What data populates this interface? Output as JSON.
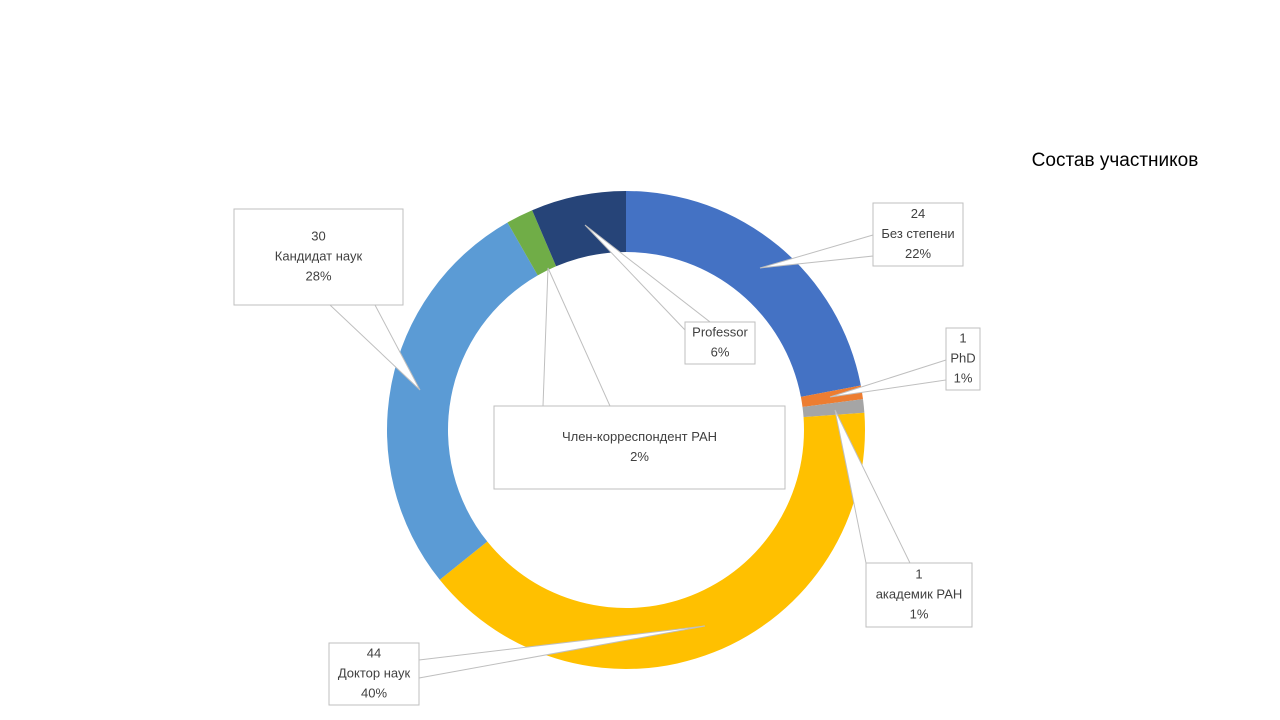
{
  "chart_data": {
    "type": "donut",
    "title": "Состав участников",
    "categories": [
      "Без степени",
      "PhD",
      "академик РАН",
      "Доктор  наук",
      "Кандидат наук",
      "Член-корреспондент РАН",
      "Professor"
    ],
    "values": [
      24,
      1,
      1,
      44,
      30,
      2,
      7
    ],
    "value_labels": [
      "24",
      "1",
      "1",
      "44",
      "30",
      null,
      null
    ],
    "percent_labels": [
      "22%",
      "1%",
      "1%",
      "40%",
      "28%",
      "2%",
      "6%"
    ],
    "colors": [
      "#4472c4",
      "#ed7d31",
      "#a5a5a5",
      "#ffc000",
      "#5b9bd5",
      "#70ad47",
      "#264478"
    ]
  }
}
